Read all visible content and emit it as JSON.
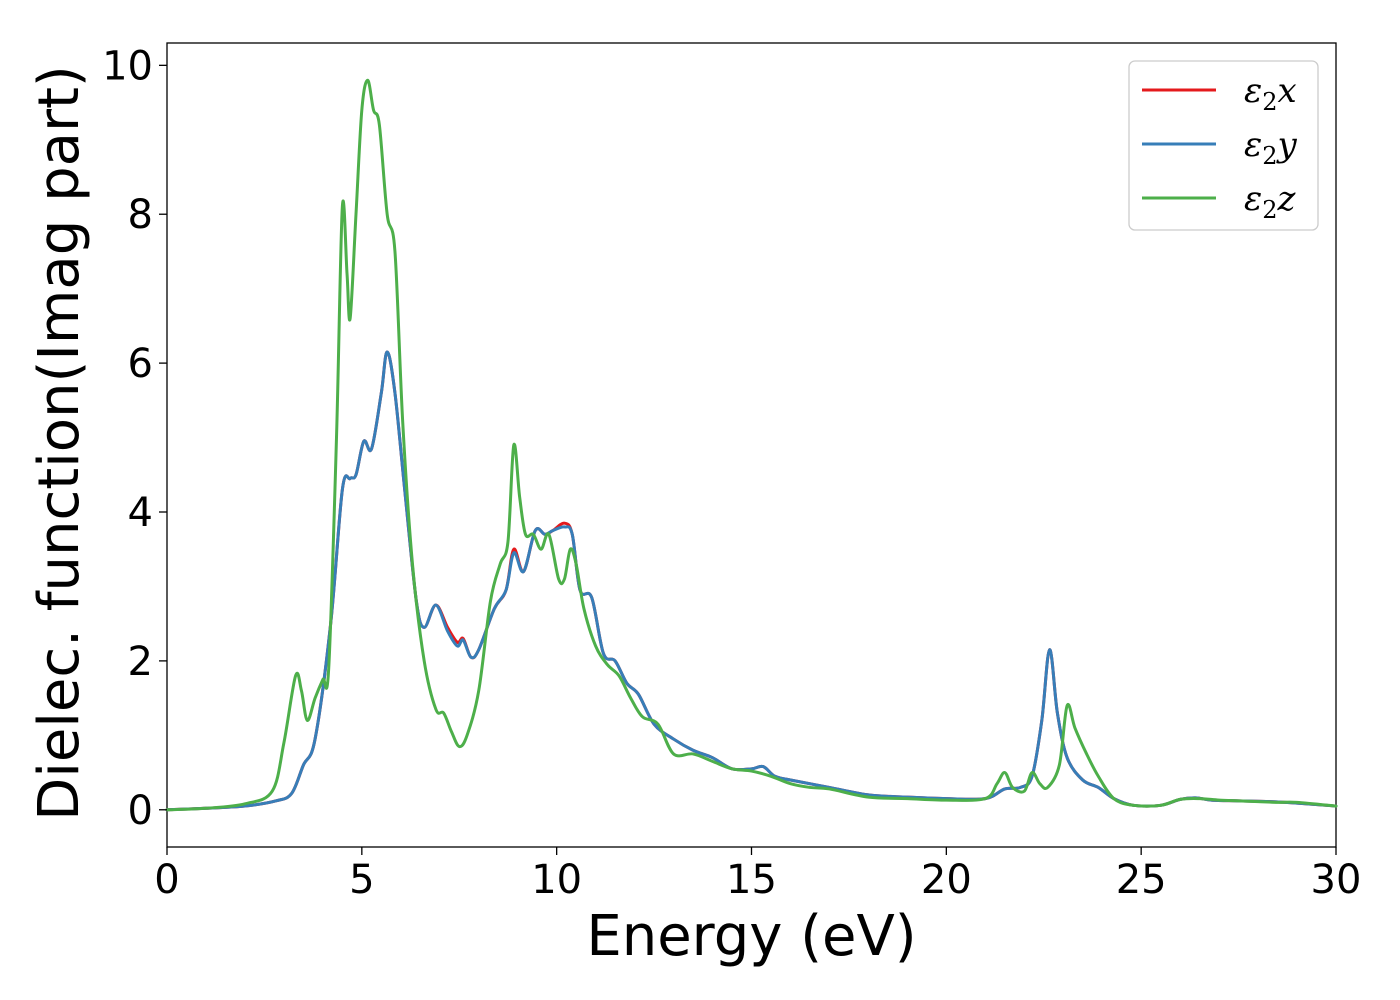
{
  "chart_data": {
    "type": "line",
    "xlabel": "Energy (eV)",
    "ylabel": "Dielec. function(Imag part)",
    "xlim": [
      0,
      30
    ],
    "ylim": [
      -0.5,
      10.3
    ],
    "xticks": [
      0,
      5,
      10,
      15,
      20,
      25,
      30
    ],
    "yticks": [
      0,
      2,
      4,
      6,
      8,
      10
    ],
    "legend_position": "top-right",
    "grid": false,
    "series": [
      {
        "name": "ε₂x",
        "legend_base": "ε",
        "legend_sub": "2",
        "legend_suffix": "x",
        "color": "#e41a1c",
        "points": [
          [
            0,
            0
          ],
          [
            1,
            0.02
          ],
          [
            2,
            0.05
          ],
          [
            2.8,
            0.12
          ],
          [
            3.2,
            0.22
          ],
          [
            3.5,
            0.6
          ],
          [
            3.8,
            0.95
          ],
          [
            4.2,
            2.5
          ],
          [
            4.5,
            4.3
          ],
          [
            4.7,
            4.45
          ],
          [
            4.85,
            4.5
          ],
          [
            5.05,
            4.95
          ],
          [
            5.25,
            4.85
          ],
          [
            5.5,
            5.6
          ],
          [
            5.65,
            6.15
          ],
          [
            5.85,
            5.6
          ],
          [
            6.1,
            4.3
          ],
          [
            6.4,
            2.8
          ],
          [
            6.6,
            2.45
          ],
          [
            6.9,
            2.75
          ],
          [
            7.2,
            2.45
          ],
          [
            7.45,
            2.25
          ],
          [
            7.6,
            2.3
          ],
          [
            7.8,
            2.05
          ],
          [
            8.0,
            2.15
          ],
          [
            8.4,
            2.7
          ],
          [
            8.7,
            2.95
          ],
          [
            8.9,
            3.5
          ],
          [
            9.15,
            3.2
          ],
          [
            9.45,
            3.75
          ],
          [
            9.7,
            3.7
          ],
          [
            9.9,
            3.75
          ],
          [
            10.2,
            3.85
          ],
          [
            10.4,
            3.7
          ],
          [
            10.6,
            2.95
          ],
          [
            10.9,
            2.85
          ],
          [
            11.2,
            2.1
          ],
          [
            11.5,
            2.0
          ],
          [
            11.8,
            1.7
          ],
          [
            12.1,
            1.55
          ],
          [
            12.5,
            1.15
          ],
          [
            13.0,
            0.95
          ],
          [
            13.5,
            0.8
          ],
          [
            14.0,
            0.7
          ],
          [
            14.5,
            0.55
          ],
          [
            15.0,
            0.55
          ],
          [
            15.3,
            0.58
          ],
          [
            15.6,
            0.45
          ],
          [
            16.0,
            0.4
          ],
          [
            17.0,
            0.3
          ],
          [
            18.0,
            0.2
          ],
          [
            19.0,
            0.17
          ],
          [
            20.0,
            0.15
          ],
          [
            21.0,
            0.15
          ],
          [
            21.5,
            0.28
          ],
          [
            21.9,
            0.3
          ],
          [
            22.2,
            0.45
          ],
          [
            22.45,
            1.2
          ],
          [
            22.65,
            2.15
          ],
          [
            22.85,
            1.3
          ],
          [
            23.1,
            0.7
          ],
          [
            23.5,
            0.4
          ],
          [
            23.9,
            0.3
          ],
          [
            24.3,
            0.15
          ],
          [
            24.8,
            0.06
          ],
          [
            25.5,
            0.06
          ],
          [
            26.0,
            0.14
          ],
          [
            26.4,
            0.16
          ],
          [
            26.8,
            0.13
          ],
          [
            27.5,
            0.12
          ],
          [
            28.3,
            0.11
          ],
          [
            29.0,
            0.09
          ],
          [
            30.0,
            0.05
          ]
        ]
      },
      {
        "name": "ε₂y",
        "legend_base": "ε",
        "legend_sub": "2",
        "legend_suffix": "y",
        "color": "#377eb8",
        "points": [
          [
            0,
            0
          ],
          [
            1,
            0.02
          ],
          [
            2,
            0.05
          ],
          [
            2.8,
            0.12
          ],
          [
            3.2,
            0.22
          ],
          [
            3.5,
            0.6
          ],
          [
            3.8,
            0.95
          ],
          [
            4.2,
            2.5
          ],
          [
            4.5,
            4.3
          ],
          [
            4.7,
            4.45
          ],
          [
            4.85,
            4.5
          ],
          [
            5.05,
            4.95
          ],
          [
            5.25,
            4.85
          ],
          [
            5.5,
            5.6
          ],
          [
            5.65,
            6.15
          ],
          [
            5.85,
            5.6
          ],
          [
            6.1,
            4.3
          ],
          [
            6.4,
            2.8
          ],
          [
            6.6,
            2.45
          ],
          [
            6.9,
            2.75
          ],
          [
            7.2,
            2.4
          ],
          [
            7.45,
            2.2
          ],
          [
            7.6,
            2.28
          ],
          [
            7.8,
            2.05
          ],
          [
            8.0,
            2.15
          ],
          [
            8.4,
            2.7
          ],
          [
            8.7,
            2.95
          ],
          [
            8.9,
            3.45
          ],
          [
            9.15,
            3.2
          ],
          [
            9.45,
            3.75
          ],
          [
            9.7,
            3.7
          ],
          [
            9.9,
            3.75
          ],
          [
            10.2,
            3.8
          ],
          [
            10.4,
            3.7
          ],
          [
            10.6,
            2.95
          ],
          [
            10.9,
            2.85
          ],
          [
            11.2,
            2.1
          ],
          [
            11.5,
            2.0
          ],
          [
            11.8,
            1.7
          ],
          [
            12.1,
            1.55
          ],
          [
            12.5,
            1.15
          ],
          [
            13.0,
            0.95
          ],
          [
            13.5,
            0.8
          ],
          [
            14.0,
            0.7
          ],
          [
            14.5,
            0.55
          ],
          [
            15.0,
            0.55
          ],
          [
            15.3,
            0.58
          ],
          [
            15.6,
            0.45
          ],
          [
            16.0,
            0.4
          ],
          [
            17.0,
            0.3
          ],
          [
            18.0,
            0.2
          ],
          [
            19.0,
            0.17
          ],
          [
            20.0,
            0.15
          ],
          [
            21.0,
            0.15
          ],
          [
            21.5,
            0.28
          ],
          [
            21.9,
            0.3
          ],
          [
            22.2,
            0.45
          ],
          [
            22.45,
            1.2
          ],
          [
            22.65,
            2.15
          ],
          [
            22.85,
            1.3
          ],
          [
            23.1,
            0.7
          ],
          [
            23.5,
            0.4
          ],
          [
            23.9,
            0.3
          ],
          [
            24.3,
            0.15
          ],
          [
            24.8,
            0.06
          ],
          [
            25.5,
            0.06
          ],
          [
            26.0,
            0.14
          ],
          [
            26.4,
            0.16
          ],
          [
            26.8,
            0.13
          ],
          [
            27.5,
            0.12
          ],
          [
            28.3,
            0.11
          ],
          [
            29.0,
            0.09
          ],
          [
            30.0,
            0.05
          ]
        ]
      },
      {
        "name": "ε₂z",
        "legend_base": "ε",
        "legend_sub": "2",
        "legend_suffix": "z",
        "color": "#4daf4a",
        "points": [
          [
            0,
            0
          ],
          [
            1,
            0.02
          ],
          [
            2,
            0.08
          ],
          [
            2.7,
            0.25
          ],
          [
            3.0,
            0.9
          ],
          [
            3.3,
            1.8
          ],
          [
            3.45,
            1.6
          ],
          [
            3.6,
            1.2
          ],
          [
            3.8,
            1.5
          ],
          [
            4.0,
            1.75
          ],
          [
            4.15,
            1.9
          ],
          [
            4.35,
            5.0
          ],
          [
            4.5,
            8.1
          ],
          [
            4.62,
            7.2
          ],
          [
            4.7,
            6.6
          ],
          [
            4.85,
            8.0
          ],
          [
            5.0,
            9.4
          ],
          [
            5.15,
            9.8
          ],
          [
            5.3,
            9.4
          ],
          [
            5.45,
            9.2
          ],
          [
            5.65,
            8.0
          ],
          [
            5.85,
            7.5
          ],
          [
            6.05,
            5.2
          ],
          [
            6.3,
            3.3
          ],
          [
            6.6,
            2.0
          ],
          [
            6.9,
            1.35
          ],
          [
            7.1,
            1.3
          ],
          [
            7.3,
            1.05
          ],
          [
            7.5,
            0.85
          ],
          [
            7.7,
            1.0
          ],
          [
            8.0,
            1.6
          ],
          [
            8.3,
            2.8
          ],
          [
            8.55,
            3.3
          ],
          [
            8.75,
            3.6
          ],
          [
            8.9,
            4.9
          ],
          [
            9.05,
            4.2
          ],
          [
            9.2,
            3.7
          ],
          [
            9.4,
            3.7
          ],
          [
            9.6,
            3.5
          ],
          [
            9.8,
            3.7
          ],
          [
            10.05,
            3.1
          ],
          [
            10.2,
            3.1
          ],
          [
            10.35,
            3.5
          ],
          [
            10.5,
            3.3
          ],
          [
            10.7,
            2.7
          ],
          [
            11.0,
            2.2
          ],
          [
            11.3,
            1.95
          ],
          [
            11.6,
            1.8
          ],
          [
            11.9,
            1.5
          ],
          [
            12.2,
            1.25
          ],
          [
            12.6,
            1.15
          ],
          [
            13.0,
            0.75
          ],
          [
            13.5,
            0.75
          ],
          [
            14.0,
            0.65
          ],
          [
            14.5,
            0.55
          ],
          [
            15.0,
            0.52
          ],
          [
            15.5,
            0.45
          ],
          [
            16.0,
            0.35
          ],
          [
            16.5,
            0.3
          ],
          [
            17.0,
            0.28
          ],
          [
            18.0,
            0.17
          ],
          [
            19.0,
            0.15
          ],
          [
            20.0,
            0.13
          ],
          [
            21.0,
            0.15
          ],
          [
            21.3,
            0.35
          ],
          [
            21.5,
            0.5
          ],
          [
            21.7,
            0.3
          ],
          [
            22.0,
            0.25
          ],
          [
            22.2,
            0.5
          ],
          [
            22.4,
            0.35
          ],
          [
            22.6,
            0.3
          ],
          [
            22.9,
            0.6
          ],
          [
            23.1,
            1.4
          ],
          [
            23.3,
            1.1
          ],
          [
            23.6,
            0.75
          ],
          [
            23.9,
            0.45
          ],
          [
            24.3,
            0.15
          ],
          [
            24.8,
            0.06
          ],
          [
            25.5,
            0.06
          ],
          [
            26.0,
            0.14
          ],
          [
            26.5,
            0.15
          ],
          [
            27.0,
            0.13
          ],
          [
            27.5,
            0.12
          ],
          [
            28.0,
            0.11
          ],
          [
            28.5,
            0.1
          ],
          [
            29.0,
            0.1
          ],
          [
            30.0,
            0.05
          ]
        ]
      }
    ]
  }
}
